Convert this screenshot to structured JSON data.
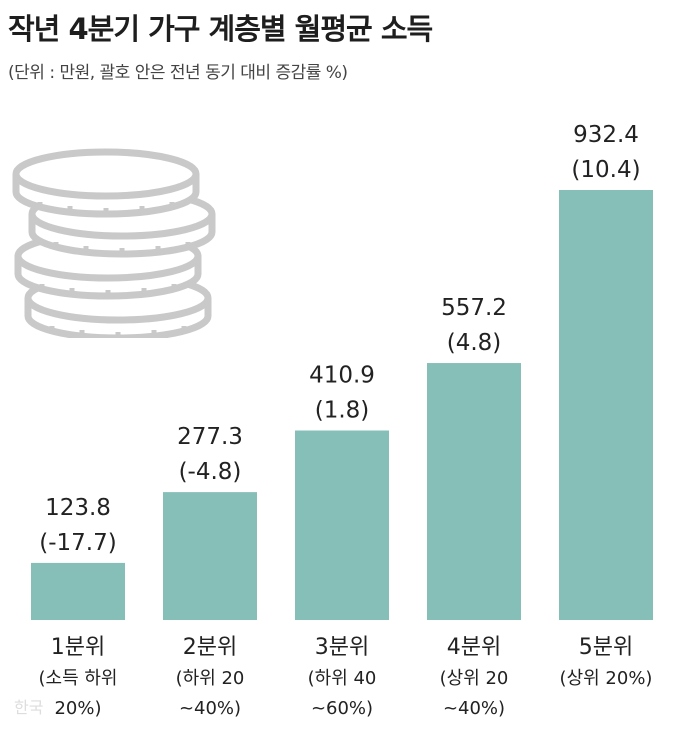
{
  "title": "작년 4분기 가구 계층별 월평균 소득",
  "subtitle": "(단위 : 만원, 괄호 안은 전년 동기 대비 증감률 %)",
  "watermark": "한국",
  "colors": {
    "bar": "#86bfb7",
    "coin_fill": "#ffffff",
    "coin_stroke": "#c9c9c9",
    "text": "#222222"
  },
  "icon": "coin-stack-icon",
  "chart_data": {
    "type": "bar",
    "title": "작년 4분기 가구 계층별 월평균 소득",
    "subtitle": "(단위 : 만원, 괄호 안은 전년 동기 대비 증감률 %)",
    "xlabel": "",
    "ylabel": "",
    "ylim": [
      0,
      932.4
    ],
    "grid": false,
    "categories": [
      [
        "1분위",
        "(소득 하위",
        "20%)"
      ],
      [
        "2분위",
        "(하위 20",
        "~40%)"
      ],
      [
        "3분위",
        "(하위 40",
        "~60%)"
      ],
      [
        "4분위",
        "(상위 20",
        "~40%)"
      ],
      [
        "5분위",
        "(상위 20%)"
      ]
    ],
    "values": [
      123.8,
      277.3,
      410.9,
      557.2,
      932.4
    ],
    "value_labels": [
      "123.8",
      "277.3",
      "410.9",
      "557.2",
      "932.4"
    ],
    "change_labels": [
      "(-17.7)",
      "(-4.8)",
      "(1.8)",
      "(4.8)",
      "(10.4)"
    ]
  }
}
